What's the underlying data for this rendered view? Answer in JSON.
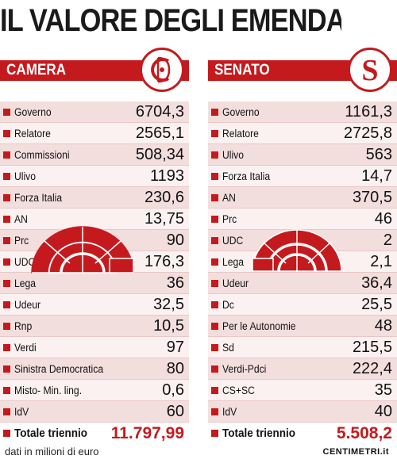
{
  "title": "IL VALORE DEGLI EMENDAMENTI",
  "accent_color": "#c41a1e",
  "camera": {
    "header": "CAMERA",
    "seal_icon": "camera-monogram-icon",
    "rows": [
      {
        "label": "Governo",
        "value": "6704,3"
      },
      {
        "label": "Relatore",
        "value": "2565,1"
      },
      {
        "label": "Commissioni",
        "value": "508,34"
      },
      {
        "label": "Ulivo",
        "value": "1193"
      },
      {
        "label": "Forza Italia",
        "value": "230,6"
      },
      {
        "label": "AN",
        "value": "13,75"
      },
      {
        "label": "Prc",
        "value": "90"
      },
      {
        "label": "UDC",
        "value": "176,3"
      },
      {
        "label": "Lega",
        "value": "36"
      },
      {
        "label": "Udeur",
        "value": "32,5"
      },
      {
        "label": "Rnp",
        "value": "10,5"
      },
      {
        "label": "Verdi",
        "value": "97"
      },
      {
        "label": "Sinistra Democratica",
        "value": "80"
      },
      {
        "label": "Misto- Min. ling.",
        "value": "0,6"
      },
      {
        "label": "IdV",
        "value": "60"
      }
    ],
    "total_label": "Totale triennio",
    "total_value": "11.797,99"
  },
  "senato": {
    "header": "SENATO",
    "seal_icon": "senato-s-icon",
    "rows": [
      {
        "label": "Governo",
        "value": "1161,3"
      },
      {
        "label": "Relatore",
        "value": "2725,8"
      },
      {
        "label": "Ulivo",
        "value": "563"
      },
      {
        "label": "Forza Italia",
        "value": "14,7"
      },
      {
        "label": "AN",
        "value": "370,5"
      },
      {
        "label": "Prc",
        "value": "46"
      },
      {
        "label": "UDC",
        "value": "2"
      },
      {
        "label": "Lega",
        "value": "2,1"
      },
      {
        "label": "Udeur",
        "value": "36,4"
      },
      {
        "label": "Dc",
        "value": "25,5"
      },
      {
        "label": "Per le Autonomie",
        "value": "48"
      },
      {
        "label": "Sd",
        "value": "215,5"
      },
      {
        "label": "Verdi-Pdci",
        "value": "222,4"
      },
      {
        "label": "CS+SC",
        "value": "35"
      },
      {
        "label": "IdV",
        "value": "40"
      }
    ],
    "total_label": "Totale triennio",
    "total_value": "5.508,2"
  },
  "footer": {
    "note": "dati in milioni di euro",
    "credit": "CENTIMETRI.it"
  },
  "chart_data": [
    {
      "type": "table",
      "title": "CAMERA",
      "categories": [
        "Governo",
        "Relatore",
        "Commissioni",
        "Ulivo",
        "Forza Italia",
        "AN",
        "Prc",
        "UDC",
        "Lega",
        "Udeur",
        "Rnp",
        "Verdi",
        "Sinistra Democratica",
        "Misto- Min. ling.",
        "IdV"
      ],
      "values": [
        6704.3,
        2565.1,
        508.34,
        1193,
        230.6,
        13.75,
        90,
        176.3,
        36,
        32.5,
        10.5,
        97,
        80,
        0.6,
        60
      ],
      "total": 11797.99
    },
    {
      "type": "table",
      "title": "SENATO",
      "categories": [
        "Governo",
        "Relatore",
        "Ulivo",
        "Forza Italia",
        "AN",
        "Prc",
        "UDC",
        "Lega",
        "Udeur",
        "Dc",
        "Per le Autonomie",
        "Sd",
        "Verdi-Pdci",
        "CS+SC",
        "IdV"
      ],
      "values": [
        1161.3,
        2725.8,
        563,
        14.7,
        370.5,
        46,
        2,
        2.1,
        36.4,
        25.5,
        48,
        215.5,
        222.4,
        35,
        40
      ],
      "total": 5508.2
    }
  ]
}
